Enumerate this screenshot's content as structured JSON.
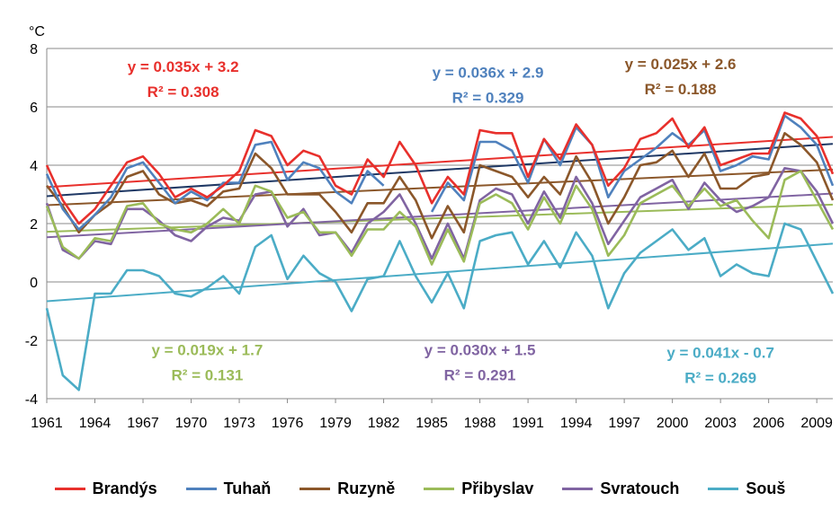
{
  "chart_data": {
    "type": "line",
    "ylabel": "°C",
    "ylim": [
      -4,
      8
    ],
    "yticks": [
      "8",
      "6",
      "4",
      "2",
      "0",
      "-2",
      "-4"
    ],
    "xticks": [
      "1961",
      "1964",
      "1967",
      "1970",
      "1973",
      "1976",
      "1979",
      "1982",
      "1985",
      "1988",
      "1991",
      "1994",
      "1997",
      "2000",
      "2003",
      "2006",
      "2009"
    ],
    "x": [
      1961,
      1962,
      1963,
      1964,
      1965,
      1966,
      1967,
      1968,
      1969,
      1970,
      1971,
      1972,
      1973,
      1974,
      1975,
      1976,
      1977,
      1978,
      1979,
      1980,
      1981,
      1982,
      1983,
      1984,
      1985,
      1986,
      1987,
      1988,
      1989,
      1990,
      1991,
      1992,
      1993,
      1994,
      1995,
      1996,
      1997,
      1998,
      1999,
      2000,
      2001,
      2002,
      2003,
      2004,
      2005,
      2006,
      2007,
      2008,
      2009,
      2010
    ],
    "grid": true,
    "legend_position": "bottom",
    "series": [
      {
        "name": "Brandýs",
        "color": "#e8302c",
        "values": [
          4.0,
          2.8,
          2.0,
          2.5,
          3.3,
          4.1,
          4.3,
          3.7,
          2.9,
          3.2,
          2.9,
          3.3,
          3.8,
          5.2,
          5.0,
          4.0,
          4.5,
          4.3,
          3.3,
          3.0,
          4.2,
          3.6,
          4.8,
          4.0,
          2.7,
          3.6,
          3.0,
          5.2,
          5.1,
          5.1,
          3.6,
          4.9,
          4.2,
          5.4,
          4.7,
          3.3,
          3.9,
          4.9,
          5.1,
          5.6,
          4.6,
          5.3,
          4.0,
          4.2,
          4.4,
          4.4,
          5.8,
          5.6,
          5.0,
          3.7
        ],
        "trend": [
          3.25,
          4.97
        ]
      },
      {
        "name": "Tuhaň",
        "color": "#4f81bd",
        "values": [
          3.7,
          2.5,
          1.8,
          2.3,
          2.9,
          3.9,
          4.1,
          3.4,
          2.7,
          3.1,
          2.8,
          3.4,
          3.4,
          4.7,
          4.8,
          3.5,
          4.1,
          3.9,
          3.1,
          2.7,
          3.8,
          3.3,
          null,
          null,
          2.4,
          3.4,
          2.8,
          4.8,
          4.8,
          4.5,
          3.4,
          4.9,
          4.0,
          5.3,
          4.7,
          2.9,
          3.8,
          4.2,
          4.6,
          5.1,
          4.7,
          5.2,
          3.8,
          4.0,
          4.3,
          4.2,
          5.7,
          5.3,
          4.7,
          3.3
        ],
        "trend": null
      },
      {
        "name": "Ruzyně",
        "color": "#8b572a",
        "values": [
          3.3,
          2.6,
          1.7,
          2.3,
          2.7,
          3.6,
          3.8,
          3.0,
          2.7,
          2.8,
          2.6,
          3.1,
          3.2,
          4.4,
          3.9,
          3.0,
          3.0,
          3.0,
          2.4,
          1.7,
          2.7,
          2.7,
          3.6,
          2.8,
          1.5,
          2.6,
          1.7,
          4.0,
          3.8,
          3.6,
          2.9,
          3.6,
          3.0,
          4.3,
          3.4,
          2.0,
          2.9,
          4.0,
          4.1,
          4.5,
          3.6,
          4.4,
          3.2,
          3.2,
          3.6,
          3.7,
          5.1,
          4.7,
          4.1,
          2.8
        ],
        "trend": [
          2.63,
          3.85
        ]
      },
      {
        "name": "Přibyslav",
        "color": "#9bbb59",
        "values": [
          2.6,
          1.2,
          0.8,
          1.5,
          1.4,
          2.6,
          2.7,
          2.0,
          1.8,
          1.7,
          2.0,
          2.5,
          2.0,
          3.3,
          3.1,
          2.2,
          2.4,
          1.7,
          1.7,
          0.9,
          1.8,
          1.8,
          2.4,
          1.9,
          0.6,
          1.8,
          0.7,
          2.7,
          3.0,
          2.7,
          1.8,
          2.9,
          2.0,
          3.3,
          2.5,
          0.9,
          1.6,
          2.7,
          3.0,
          3.3,
          2.6,
          3.2,
          2.6,
          2.8,
          2.1,
          1.5,
          3.5,
          3.8,
          2.8,
          1.8
        ],
        "trend": [
          1.72,
          2.65
        ]
      },
      {
        "name": "Svratouch",
        "color": "#8064a2",
        "values": [
          2.7,
          1.1,
          0.8,
          1.4,
          1.3,
          2.5,
          2.5,
          2.1,
          1.6,
          1.4,
          1.9,
          2.2,
          2.1,
          3.0,
          3.1,
          1.9,
          2.5,
          1.6,
          1.7,
          1.0,
          2.0,
          2.4,
          3.0,
          2.0,
          0.8,
          2.0,
          0.8,
          2.8,
          3.2,
          3.0,
          2.0,
          3.1,
          2.2,
          3.6,
          2.7,
          1.3,
          2.1,
          2.9,
          3.2,
          3.5,
          2.5,
          3.4,
          2.8,
          2.4,
          2.6,
          2.9,
          3.9,
          3.8,
          3.1,
          2.0
        ],
        "trend": [
          1.53,
          3.03
        ]
      },
      {
        "name": "Souš",
        "color": "#4bacc6",
        "values": [
          -0.9,
          -3.2,
          -3.7,
          -0.4,
          -0.4,
          0.4,
          0.4,
          0.2,
          -0.4,
          -0.5,
          -0.2,
          0.2,
          -0.4,
          1.2,
          1.6,
          0.1,
          0.9,
          0.3,
          0.0,
          -1.0,
          0.1,
          0.2,
          1.4,
          0.2,
          -0.7,
          0.3,
          -0.9,
          1.4,
          1.6,
          1.7,
          0.6,
          1.4,
          0.5,
          1.7,
          0.9,
          -0.9,
          0.3,
          1.0,
          1.4,
          1.8,
          1.1,
          1.5,
          0.2,
          0.6,
          0.3,
          0.2,
          2.0,
          1.8,
          0.7,
          -0.4
        ],
        "trend": [
          -0.66,
          1.31
        ]
      }
    ],
    "extra_trend": {
      "color": "#1f3864",
      "trend": [
        2.94,
        4.73
      ]
    },
    "annotations": [
      {
        "eq": "y = 0.035x + 3.2",
        "r2": "R² = 0.308",
        "color": "#e8302c",
        "x": 1969.5,
        "y": 7.2
      },
      {
        "eq": "y = 0.036x + 2.9",
        "r2": "R² = 0.329",
        "color": "#4f81bd",
        "x": 1988.5,
        "y": 7.0
      },
      {
        "eq": "y = 0.025x + 2.6",
        "r2": "R² = 0.188",
        "color": "#8b572a",
        "x": 2000.5,
        "y": 7.3
      },
      {
        "eq": "y = 0.019x + 1.7",
        "r2": "R² = 0.131",
        "color": "#9bbb59",
        "x": 1971.0,
        "y": -2.5
      },
      {
        "eq": "y = 0.030x + 1.5",
        "r2": "R² = 0.291",
        "color": "#8064a2",
        "x": 1988.0,
        "y": -2.5
      },
      {
        "eq": "y = 0.041x - 0.7",
        "r2": "R² = 0.269",
        "color": "#4bacc6",
        "x": 2003.0,
        "y": -2.6
      }
    ]
  }
}
